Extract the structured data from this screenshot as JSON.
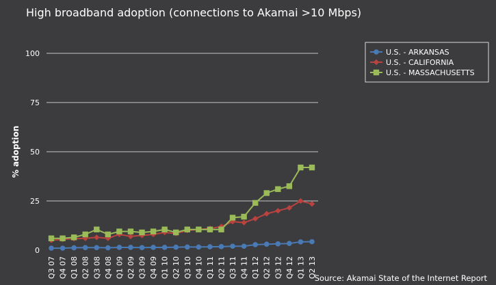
{
  "chart_data": {
    "type": "line",
    "title": "High broadband adoption (connections to Akamai >10 Mbps)",
    "xlabel": "",
    "ylabel": "% adoption",
    "source": "Source: Akamai State of the Internet Report",
    "ylim": [
      0,
      100
    ],
    "yticks": [
      0,
      25,
      50,
      75,
      100
    ],
    "grid": true,
    "legend_position": "top-right",
    "categories": [
      "Q3 07",
      "Q4 07",
      "Q1 08",
      "Q2 08",
      "Q3 08",
      "Q4 08",
      "Q1 09",
      "Q2 09",
      "Q3 09",
      "Q4 09",
      "Q1 10",
      "Q2 10",
      "Q3 10",
      "Q4 10",
      "Q1 11",
      "Q2 11",
      "Q3 11",
      "Q4 11",
      "Q1 12",
      "Q2 12",
      "Q3 12",
      "Q4 12",
      "Q1 13",
      "Q2 13"
    ],
    "series": [
      {
        "name": "U.S. - ARKANSAS",
        "color": "#4a7ab5",
        "marker": "circle",
        "values": [
          1,
          1,
          1.2,
          1.3,
          1.3,
          1.2,
          1.4,
          1.4,
          1.3,
          1.4,
          1.4,
          1.5,
          1.6,
          1.6,
          1.7,
          1.8,
          2,
          2,
          2.8,
          3,
          3.2,
          3.4,
          4.2,
          4.3
        ]
      },
      {
        "name": "U.S. - CALIFORNIA",
        "color": "#b9433f",
        "marker": "diamond",
        "values": [
          5,
          5.5,
          5.8,
          6,
          6.5,
          6,
          8,
          7,
          7.5,
          8,
          9,
          8.5,
          10,
          10.5,
          11,
          12,
          14.5,
          14,
          16,
          18.5,
          20,
          21.5,
          25,
          23.5
        ]
      },
      {
        "name": "U.S. - MASSACHUSETTS",
        "color": "#9bbb59",
        "marker": "square",
        "values": [
          6,
          6,
          6.5,
          8,
          10.5,
          8,
          9.5,
          9.5,
          9,
          9.5,
          10.5,
          9,
          10.5,
          10.5,
          10.5,
          10.5,
          16.5,
          17,
          24,
          29,
          31,
          32.5,
          42,
          42
        ]
      }
    ]
  }
}
